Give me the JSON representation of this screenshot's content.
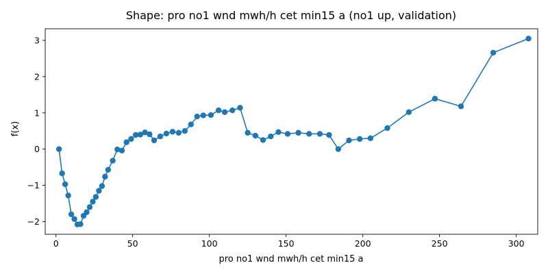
{
  "chart_data": {
    "type": "line",
    "title": "Shape: pro no1 wnd mwh/h cet min15 a (no1 up, validation)",
    "xlabel": "pro no1 wnd mwh/h cet min15 a",
    "ylabel": "f(x)",
    "xlim": [
      -7,
      314
    ],
    "ylim": [
      -2.35,
      3.32
    ],
    "xticks": [
      0,
      50,
      100,
      150,
      200,
      250,
      300
    ],
    "xtick_labels": [
      "0",
      "50",
      "100",
      "150",
      "200",
      "250",
      "300"
    ],
    "yticks": [
      -2,
      -1,
      0,
      1,
      2,
      3
    ],
    "ytick_labels": [
      "−2",
      "−1",
      "0",
      "1",
      "2",
      "3"
    ],
    "grid": false,
    "series": [
      {
        "color": "#1f77b4",
        "marker": "circle",
        "x": [
          2,
          4,
          6,
          8,
          10,
          12,
          14,
          16,
          18,
          20,
          22,
          24,
          26,
          28,
          30,
          32,
          34,
          37,
          40,
          43,
          46,
          49,
          52,
          55,
          58,
          61,
          64,
          68,
          72,
          76,
          80,
          84,
          88,
          92,
          96,
          101,
          106,
          110,
          115,
          120,
          125,
          130,
          135,
          140,
          145,
          151,
          158,
          165,
          172,
          178,
          184,
          191,
          198,
          205,
          216,
          230,
          247,
          264,
          285,
          308
        ],
        "y": [
          0.0,
          -0.67,
          -0.97,
          -1.28,
          -1.8,
          -1.93,
          -2.08,
          -2.07,
          -1.84,
          -1.74,
          -1.6,
          -1.45,
          -1.32,
          -1.15,
          -1.02,
          -0.76,
          -0.57,
          -0.32,
          -0.01,
          -0.04,
          0.19,
          0.28,
          0.39,
          0.4,
          0.46,
          0.41,
          0.24,
          0.35,
          0.43,
          0.48,
          0.45,
          0.5,
          0.68,
          0.9,
          0.93,
          0.94,
          1.07,
          1.02,
          1.07,
          1.14,
          0.45,
          0.37,
          0.25,
          0.35,
          0.47,
          0.42,
          0.45,
          0.42,
          0.42,
          0.39,
          0.0,
          0.24,
          0.28,
          0.3,
          0.58,
          1.02,
          1.39,
          1.18,
          2.66,
          3.05
        ]
      }
    ]
  }
}
